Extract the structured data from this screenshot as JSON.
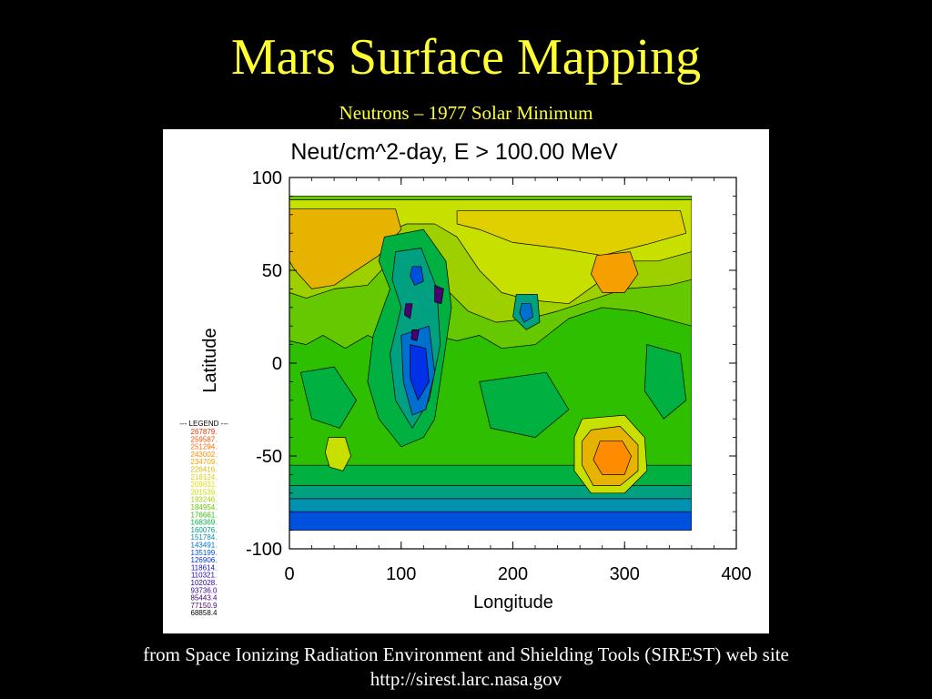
{
  "slide": {
    "title": "Mars Surface Mapping",
    "subtitle": "Neutrons – 1977 Solar Minimum",
    "footer_line1": "from Space Ionizing Radiation Environment and Shielding Tools (SIREST) web site",
    "footer_line2": "http://sirest.larc.nasa.gov"
  },
  "chart_data": {
    "type": "heatmap",
    "title": "Neut/cm^2-day,  E > 100.00 MeV",
    "xlabel": "Longitude",
    "ylabel": "Latitude",
    "xlim": [
      0,
      400
    ],
    "ylim": [
      -100,
      100
    ],
    "xticks": [
      "0",
      "100",
      "200",
      "300",
      "400"
    ],
    "yticks": [
      "100",
      "50",
      "0",
      "-50",
      "-100"
    ],
    "data_extent": {
      "lon": [
        0,
        360
      ],
      "lat": [
        -90,
        90
      ]
    },
    "legend": {
      "title": "--- LEGEND ---",
      "entries": [
        {
          "label": "267879.",
          "color": "#ff2a00"
        },
        {
          "label": "259587.",
          "color": "#ff4d00"
        },
        {
          "label": "251294.",
          "color": "#ff6e00"
        },
        {
          "label": "243002.",
          "color": "#ff8c00"
        },
        {
          "label": "234709.",
          "color": "#f5a000"
        },
        {
          "label": "226416.",
          "color": "#e6b400"
        },
        {
          "label": "218124.",
          "color": "#e1d000"
        },
        {
          "label": "209831.",
          "color": "#dde400"
        },
        {
          "label": "201539.",
          "color": "#c8e000"
        },
        {
          "label": "193246.",
          "color": "#9ed000"
        },
        {
          "label": "184954.",
          "color": "#66c800"
        },
        {
          "label": "176661.",
          "color": "#2ebf00"
        },
        {
          "label": "168369.",
          "color": "#00b040"
        },
        {
          "label": "160076.",
          "color": "#00a080"
        },
        {
          "label": "151784.",
          "color": "#0090b0"
        },
        {
          "label": "143491.",
          "color": "#0070d0"
        },
        {
          "label": "135199.",
          "color": "#0050e0"
        },
        {
          "label": "126906.",
          "color": "#0030e8"
        },
        {
          "label": "118614.",
          "color": "#1010e0"
        },
        {
          "label": "110321.",
          "color": "#1a00c8"
        },
        {
          "label": "102028.",
          "color": "#2a00b0"
        },
        {
          "label": "93736.0",
          "color": "#360098"
        },
        {
          "label": "85443.4",
          "color": "#400080"
        },
        {
          "label": "77150.9",
          "color": "#4a0070"
        },
        {
          "label": "68858.4",
          "color": "#000000"
        }
      ]
    },
    "regions": [
      {
        "name": "base",
        "level": 11,
        "pts": [
          [
            0,
            90
          ],
          [
            360,
            90
          ],
          [
            360,
            -90
          ],
          [
            0,
            -90
          ]
        ]
      },
      {
        "name": "south-band-1",
        "level": 12,
        "pts": [
          [
            0,
            -55
          ],
          [
            360,
            -55
          ],
          [
            360,
            -90
          ],
          [
            0,
            -90
          ]
        ]
      },
      {
        "name": "south-band-2",
        "level": 13,
        "pts": [
          [
            0,
            -66
          ],
          [
            360,
            -66
          ],
          [
            360,
            -90
          ],
          [
            0,
            -90
          ]
        ]
      },
      {
        "name": "south-band-3",
        "level": 14,
        "pts": [
          [
            0,
            -73
          ],
          [
            360,
            -73
          ],
          [
            360,
            -90
          ],
          [
            0,
            -90
          ]
        ]
      },
      {
        "name": "south-band-4",
        "level": 16,
        "pts": [
          [
            0,
            -80
          ],
          [
            360,
            -80
          ],
          [
            360,
            -90
          ],
          [
            0,
            -90
          ]
        ]
      },
      {
        "name": "north-green",
        "level": 10,
        "pts": [
          [
            0,
            90
          ],
          [
            360,
            90
          ],
          [
            360,
            20
          ],
          [
            310,
            28
          ],
          [
            280,
            30
          ],
          [
            250,
            24
          ],
          [
            220,
            10
          ],
          [
            190,
            8
          ],
          [
            170,
            15
          ],
          [
            150,
            12
          ],
          [
            130,
            15
          ],
          [
            110,
            20
          ],
          [
            90,
            10
          ],
          [
            70,
            15
          ],
          [
            50,
            8
          ],
          [
            30,
            15
          ],
          [
            15,
            10
          ],
          [
            0,
            12
          ]
        ]
      },
      {
        "name": "north-yellowgreen",
        "level": 9,
        "pts": [
          [
            0,
            90
          ],
          [
            360,
            90
          ],
          [
            360,
            45
          ],
          [
            340,
            42
          ],
          [
            300,
            40
          ],
          [
            270,
            34
          ],
          [
            240,
            28
          ],
          [
            215,
            24
          ],
          [
            185,
            22
          ],
          [
            160,
            28
          ],
          [
            140,
            40
          ],
          [
            120,
            60
          ],
          [
            100,
            65
          ],
          [
            90,
            55
          ],
          [
            70,
            42
          ],
          [
            40,
            40
          ],
          [
            15,
            35
          ],
          [
            0,
            38
          ]
        ]
      },
      {
        "name": "north-yellow",
        "level": 8,
        "pts": [
          [
            0,
            90
          ],
          [
            360,
            90
          ],
          [
            360,
            60
          ],
          [
            330,
            55
          ],
          [
            300,
            55
          ],
          [
            280,
            45
          ],
          [
            250,
            32
          ],
          [
            215,
            34
          ],
          [
            190,
            38
          ],
          [
            170,
            50
          ],
          [
            150,
            68
          ],
          [
            130,
            75
          ],
          [
            105,
            75
          ],
          [
            85,
            70
          ],
          [
            60,
            65
          ],
          [
            30,
            62
          ],
          [
            0,
            62
          ]
        ]
      },
      {
        "name": "north-orange-west",
        "level": 5,
        "pts": [
          [
            0,
            83
          ],
          [
            95,
            83
          ],
          [
            100,
            72
          ],
          [
            80,
            58
          ],
          [
            40,
            42
          ],
          [
            20,
            40
          ],
          [
            5,
            50
          ],
          [
            0,
            55
          ]
        ]
      },
      {
        "name": "north-orange-mid",
        "level": 6,
        "pts": [
          [
            150,
            82
          ],
          [
            350,
            82
          ],
          [
            355,
            70
          ],
          [
            320,
            64
          ],
          [
            280,
            58
          ],
          [
            240,
            62
          ],
          [
            200,
            65
          ],
          [
            170,
            72
          ],
          [
            150,
            75
          ]
        ]
      },
      {
        "name": "north-orange-east",
        "level": 4,
        "pts": [
          [
            275,
            58
          ],
          [
            305,
            60
          ],
          [
            312,
            48
          ],
          [
            300,
            38
          ],
          [
            280,
            38
          ],
          [
            270,
            48
          ]
        ]
      },
      {
        "name": "polar-edge",
        "level": 10,
        "pts": [
          [
            0,
            90
          ],
          [
            360,
            90
          ],
          [
            360,
            88
          ],
          [
            0,
            88
          ]
        ]
      },
      {
        "name": "tharsis-green",
        "level": 12,
        "pts": [
          [
            85,
            68
          ],
          [
            120,
            72
          ],
          [
            140,
            55
          ],
          [
            145,
            30
          ],
          [
            140,
            10
          ],
          [
            135,
            -10
          ],
          [
            130,
            -30
          ],
          [
            120,
            -40
          ],
          [
            100,
            -45
          ],
          [
            80,
            -30
          ],
          [
            70,
            -10
          ],
          [
            75,
            15
          ],
          [
            90,
            40
          ],
          [
            80,
            55
          ]
        ]
      },
      {
        "name": "tharsis-teal",
        "level": 13,
        "pts": [
          [
            95,
            60
          ],
          [
            118,
            62
          ],
          [
            132,
            40
          ],
          [
            135,
            10
          ],
          [
            125,
            -20
          ],
          [
            110,
            -35
          ],
          [
            95,
            -20
          ],
          [
            90,
            5
          ],
          [
            100,
            30
          ],
          [
            92,
            45
          ]
        ]
      },
      {
        "name": "tharsis-blue-1",
        "level": 15,
        "pts": [
          [
            100,
            15
          ],
          [
            125,
            20
          ],
          [
            130,
            -5
          ],
          [
            122,
            -25
          ],
          [
            110,
            -28
          ],
          [
            102,
            -10
          ]
        ]
      },
      {
        "name": "tharsis-blue-2",
        "level": 17,
        "pts": [
          [
            108,
            10
          ],
          [
            122,
            8
          ],
          [
            125,
            -10
          ],
          [
            115,
            -20
          ],
          [
            108,
            -8
          ]
        ]
      },
      {
        "name": "olympus",
        "level": 16,
        "pts": [
          [
            110,
            52
          ],
          [
            118,
            52
          ],
          [
            120,
            44
          ],
          [
            112,
            42
          ],
          [
            108,
            47
          ]
        ]
      },
      {
        "name": "elysium-green",
        "level": 13,
        "pts": [
          [
            203,
            37
          ],
          [
            222,
            37
          ],
          [
            224,
            22
          ],
          [
            212,
            18
          ],
          [
            200,
            25
          ]
        ]
      },
      {
        "name": "elysium-core",
        "level": 15,
        "pts": [
          [
            208,
            32
          ],
          [
            216,
            32
          ],
          [
            218,
            25
          ],
          [
            210,
            22
          ],
          [
            206,
            27
          ]
        ]
      },
      {
        "name": "hellas-yellow",
        "level": 8,
        "pts": [
          [
            262,
            -30
          ],
          [
            300,
            -28
          ],
          [
            318,
            -40
          ],
          [
            320,
            -58
          ],
          [
            300,
            -70
          ],
          [
            270,
            -70
          ],
          [
            255,
            -58
          ],
          [
            255,
            -40
          ]
        ]
      },
      {
        "name": "hellas-orange",
        "level": 5,
        "pts": [
          [
            270,
            -36
          ],
          [
            296,
            -34
          ],
          [
            312,
            -44
          ],
          [
            312,
            -58
          ],
          [
            296,
            -66
          ],
          [
            272,
            -66
          ],
          [
            262,
            -55
          ],
          [
            262,
            -42
          ]
        ]
      },
      {
        "name": "hellas-core",
        "level": 3,
        "pts": [
          [
            278,
            -42
          ],
          [
            298,
            -42
          ],
          [
            306,
            -50
          ],
          [
            300,
            -60
          ],
          [
            280,
            -60
          ],
          [
            272,
            -52
          ]
        ]
      },
      {
        "name": "argyre",
        "level": 8,
        "pts": [
          [
            35,
            -40
          ],
          [
            50,
            -40
          ],
          [
            55,
            -50
          ],
          [
            48,
            -58
          ],
          [
            36,
            -56
          ],
          [
            32,
            -48
          ]
        ]
      },
      {
        "name": "west-green-patch",
        "level": 12,
        "pts": [
          [
            10,
            -5
          ],
          [
            40,
            -2
          ],
          [
            60,
            -20
          ],
          [
            45,
            -35
          ],
          [
            20,
            -30
          ]
        ]
      },
      {
        "name": "east-green-patch",
        "level": 12,
        "pts": [
          [
            320,
            10
          ],
          [
            350,
            5
          ],
          [
            355,
            -20
          ],
          [
            335,
            -30
          ],
          [
            318,
            -15
          ]
        ]
      },
      {
        "name": "mid-green-patch",
        "level": 12,
        "pts": [
          [
            170,
            -10
          ],
          [
            230,
            -5
          ],
          [
            250,
            -25
          ],
          [
            220,
            -40
          ],
          [
            180,
            -35
          ]
        ]
      },
      {
        "name": "dark-1",
        "level": 23,
        "pts": [
          [
            130,
            42
          ],
          [
            138,
            40
          ],
          [
            136,
            32
          ],
          [
            130,
            33
          ]
        ]
      },
      {
        "name": "dark-2",
        "level": 23,
        "pts": [
          [
            104,
            32
          ],
          [
            110,
            32
          ],
          [
            108,
            24
          ],
          [
            103,
            26
          ]
        ]
      },
      {
        "name": "dark-3",
        "level": 23,
        "pts": [
          [
            110,
            18
          ],
          [
            116,
            18
          ],
          [
            114,
            12
          ],
          [
            109,
            13
          ]
        ]
      }
    ]
  }
}
